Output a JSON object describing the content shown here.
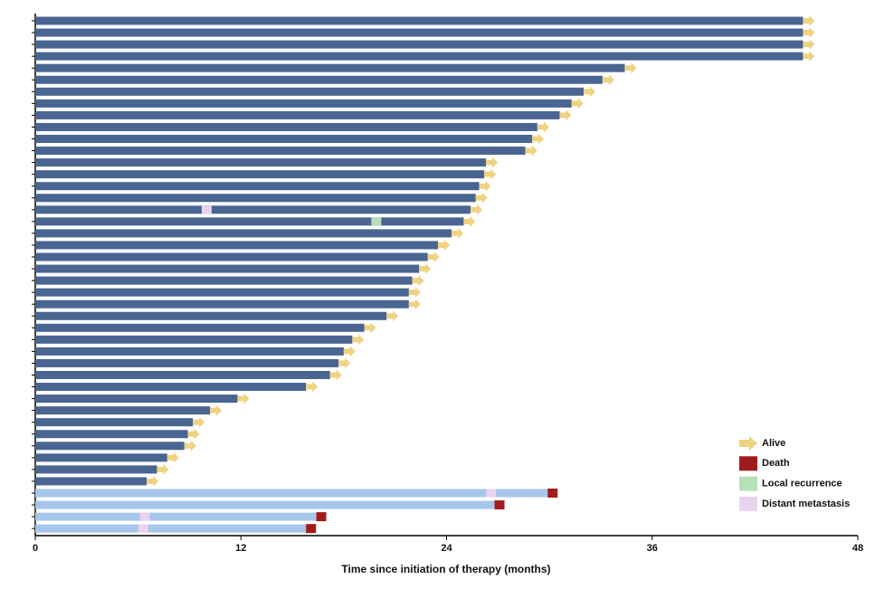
{
  "chart_data": {
    "type": "swimmer",
    "xlabel": "Time since initiation of therapy (months)",
    "xlim": [
      0,
      48
    ],
    "xticks": [
      0,
      12,
      24,
      36,
      48
    ],
    "series": [
      {
        "color": "#4a6591",
        "end_event": 0,
        "values": [
          44.8,
          44.8,
          44.8,
          44.8,
          34.4,
          33.1,
          32.0,
          31.3,
          30.6,
          29.3,
          29.0,
          28.6,
          26.3,
          26.2,
          25.9,
          25.7,
          25.4,
          25.0,
          24.3,
          23.5,
          22.9,
          22.4,
          22.0,
          21.8,
          21.8,
          20.5,
          19.2,
          18.5,
          18.0,
          17.7,
          17.2,
          15.8,
          11.8,
          10.2,
          9.2,
          8.9,
          8.7,
          7.7,
          7.1,
          6.5
        ]
      },
      {
        "color": "#a6c6ec",
        "end_event": 1,
        "values": [
          29.9,
          26.8,
          16.4,
          15.8
        ]
      }
    ],
    "events": [
      {
        "name": "Alive",
        "color": "#efd383",
        "shape": "arrow"
      },
      {
        "name": "Death",
        "color": "#a01c1c",
        "shape": "square"
      },
      {
        "name": "Local recurrence",
        "color": "#b7e0b8",
        "shape": "square",
        "points": [
          {
            "row": 17,
            "x": 19.9
          }
        ]
      },
      {
        "name": "Distant metastasis",
        "color": "#ead3ef",
        "shape": "square",
        "points": [
          {
            "row": 16,
            "x": 10.0
          },
          {
            "row": 40,
            "x": 26.6
          },
          {
            "row": 42,
            "x": 6.4
          },
          {
            "row": 43,
            "x": 6.3
          }
        ]
      }
    ]
  }
}
